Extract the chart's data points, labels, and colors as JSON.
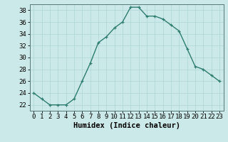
{
  "x": [
    0,
    1,
    2,
    3,
    4,
    5,
    6,
    7,
    8,
    9,
    10,
    11,
    12,
    13,
    14,
    15,
    16,
    17,
    18,
    19,
    20,
    21,
    22,
    23
  ],
  "y": [
    24,
    23,
    22,
    22,
    22,
    23,
    26,
    29,
    32.5,
    33.5,
    35,
    36,
    38.5,
    38.5,
    37,
    37,
    36.5,
    35.5,
    34.5,
    31.5,
    28.5,
    28,
    27,
    26
  ],
  "line_color": "#2e7d6e",
  "marker": "+",
  "bg_color": "#cce9e9",
  "grid_color": "#afd4d4",
  "xlabel": "Humidex (Indice chaleur)",
  "ylabel": "",
  "ylim": [
    21,
    39
  ],
  "xlim": [
    -0.5,
    23.5
  ],
  "yticks": [
    22,
    24,
    26,
    28,
    30,
    32,
    34,
    36,
    38
  ],
  "xticks": [
    0,
    1,
    2,
    3,
    4,
    5,
    6,
    7,
    8,
    9,
    10,
    11,
    12,
    13,
    14,
    15,
    16,
    17,
    18,
    19,
    20,
    21,
    22,
    23
  ],
  "tick_labelsize": 6.5,
  "xlabel_fontsize": 7.5,
  "line_width": 1.0,
  "marker_size": 3.5
}
